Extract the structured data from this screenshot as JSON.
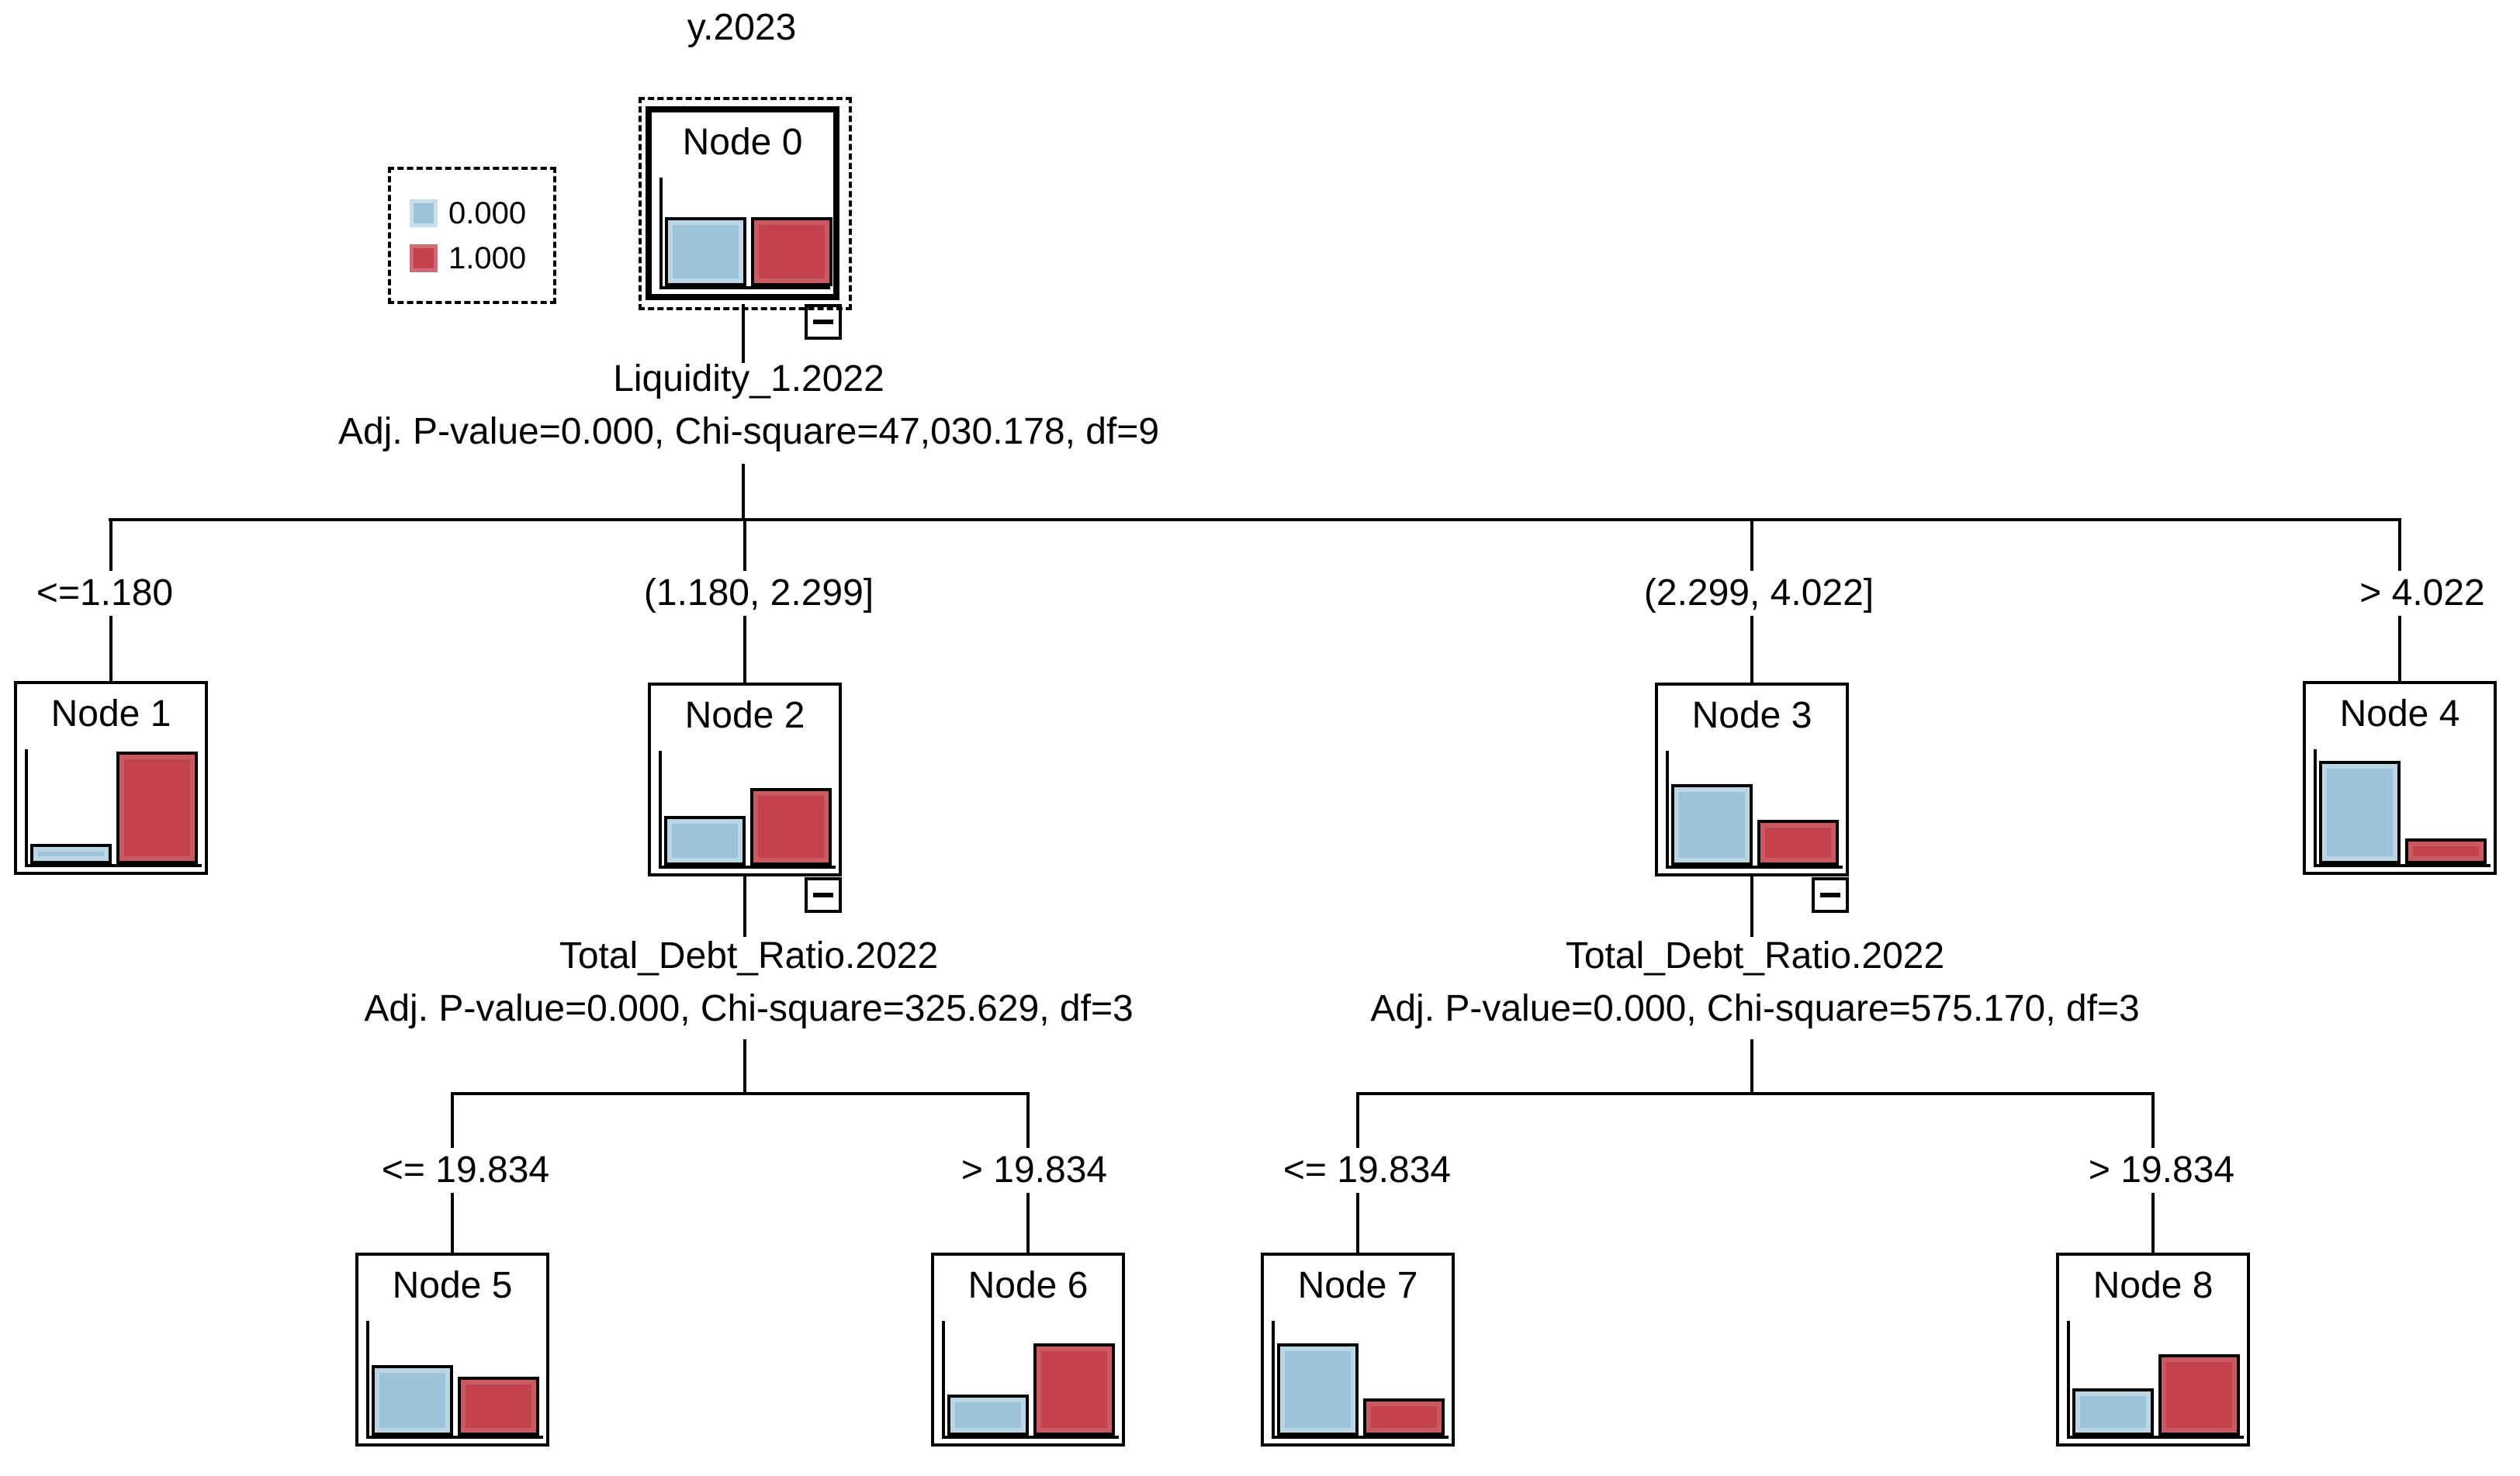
{
  "tree": {
    "dependent_variable": "y.2023"
  },
  "legend": {
    "items": [
      {
        "label": "0.000",
        "color": "#9CC3D8"
      },
      {
        "label": "1.000",
        "color": "#C2424D"
      }
    ]
  },
  "colors": {
    "category_0": "#9CC3D8",
    "category_1": "#C2424D",
    "line": "#000000",
    "background": "#FFFFFF"
  },
  "splits": [
    {
      "parent_node": "Node 0",
      "variable": "Liquidity_1.2022",
      "stats": "Adj. P-value=0.000, Chi-square=47,030.178, df=9",
      "branches": [
        "<=1.180",
        "(1.180, 2.299]",
        "(2.299, 4.022]",
        "> 4.022"
      ]
    },
    {
      "parent_node": "Node 2",
      "variable": "Total_Debt_Ratio.2022",
      "stats": "Adj. P-value=0.000, Chi-square=325.629, df=3",
      "branches": [
        "<= 19.834",
        "> 19.834"
      ]
    },
    {
      "parent_node": "Node 3",
      "variable": "Total_Debt_Ratio.2022",
      "stats": "Adj. P-value=0.000, Chi-square=575.170, df=3",
      "branches": [
        "<= 19.834",
        "> 19.834"
      ]
    }
  ],
  "nodes": [
    {
      "id": 0,
      "title": "Node 0",
      "has_collapse_button": true,
      "selected": true
    },
    {
      "id": 1,
      "title": "Node 1",
      "has_collapse_button": false,
      "selected": false
    },
    {
      "id": 2,
      "title": "Node 2",
      "has_collapse_button": true,
      "selected": false
    },
    {
      "id": 3,
      "title": "Node 3",
      "has_collapse_button": true,
      "selected": false
    },
    {
      "id": 4,
      "title": "Node 4",
      "has_collapse_button": false,
      "selected": false
    },
    {
      "id": 5,
      "title": "Node 5",
      "has_collapse_button": false,
      "selected": false
    },
    {
      "id": 6,
      "title": "Node 6",
      "has_collapse_button": false,
      "selected": false
    },
    {
      "id": 7,
      "title": "Node 7",
      "has_collapse_button": false,
      "selected": false
    },
    {
      "id": 8,
      "title": "Node 8",
      "has_collapse_button": false,
      "selected": false
    }
  ],
  "chart_data": [
    {
      "type": "bar",
      "title": "Node 0",
      "categories": [
        "0.000",
        "1.000"
      ],
      "values": [
        49,
        49
      ],
      "ylim": [
        0,
        100
      ],
      "bar_colors": [
        "#9CC3D8",
        "#C2424D"
      ]
    },
    {
      "type": "bar",
      "title": "Node 1",
      "categories": [
        "0.000",
        "1.000"
      ],
      "values": [
        11,
        83
      ],
      "ylim": [
        0,
        100
      ],
      "bar_colors": [
        "#9CC3D8",
        "#C2424D"
      ]
    },
    {
      "type": "bar",
      "title": "Node 2",
      "categories": [
        "0.000",
        "1.000"
      ],
      "values": [
        34,
        56
      ],
      "ylim": [
        0,
        100
      ],
      "bar_colors": [
        "#9CC3D8",
        "#C2424D"
      ]
    },
    {
      "type": "bar",
      "title": "Node 3",
      "categories": [
        "0.000",
        "1.000"
      ],
      "values": [
        59,
        31
      ],
      "ylim": [
        0,
        100
      ],
      "bar_colors": [
        "#9CC3D8",
        "#C2424D"
      ]
    },
    {
      "type": "bar",
      "title": "Node 4",
      "categories": [
        "0.000",
        "1.000"
      ],
      "values": [
        76,
        15
      ],
      "ylim": [
        0,
        100
      ],
      "bar_colors": [
        "#9CC3D8",
        "#C2424D"
      ]
    },
    {
      "type": "bar",
      "title": "Node 5",
      "categories": [
        "0.000",
        "1.000"
      ],
      "values": [
        50,
        41
      ],
      "ylim": [
        0,
        100
      ],
      "bar_colors": [
        "#9CC3D8",
        "#C2424D"
      ]
    },
    {
      "type": "bar",
      "title": "Node 6",
      "categories": [
        "0.000",
        "1.000"
      ],
      "values": [
        27,
        67
      ],
      "ylim": [
        0,
        100
      ],
      "bar_colors": [
        "#9CC3D8",
        "#C2424D"
      ]
    },
    {
      "type": "bar",
      "title": "Node 7",
      "categories": [
        "0.000",
        "1.000"
      ],
      "values": [
        67,
        24
      ],
      "ylim": [
        0,
        100
      ],
      "bar_colors": [
        "#9CC3D8",
        "#C2424D"
      ]
    },
    {
      "type": "bar",
      "title": "Node 8",
      "categories": [
        "0.000",
        "1.000"
      ],
      "values": [
        32,
        59
      ],
      "ylim": [
        0,
        100
      ],
      "bar_colors": [
        "#9CC3D8",
        "#C2424D"
      ]
    }
  ]
}
